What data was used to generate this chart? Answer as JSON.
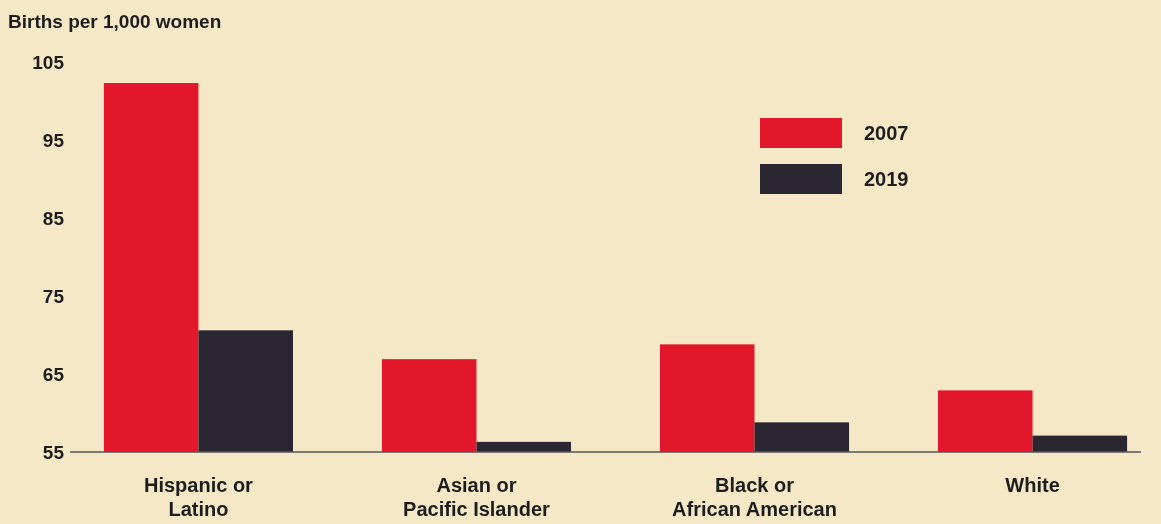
{
  "chart_data": {
    "type": "bar",
    "ylabel": "Births per 1,000 women",
    "categories": [
      "Hispanic or\nLatino",
      "Asian or\nPacific Islander",
      "Black or\nAfrican American",
      "White"
    ],
    "series": [
      {
        "name": "2007",
        "color": "#e2172b",
        "values": [
          102.3,
          66.9,
          68.8,
          62.9
        ]
      },
      {
        "name": "2019",
        "color": "#2a2732",
        "values": [
          70.6,
          56.3,
          58.8,
          57.1
        ]
      }
    ],
    "ylim": [
      55,
      105
    ],
    "yticks": [
      55,
      65,
      75,
      85,
      95,
      105
    ],
    "grid": false,
    "legend": "top right"
  }
}
